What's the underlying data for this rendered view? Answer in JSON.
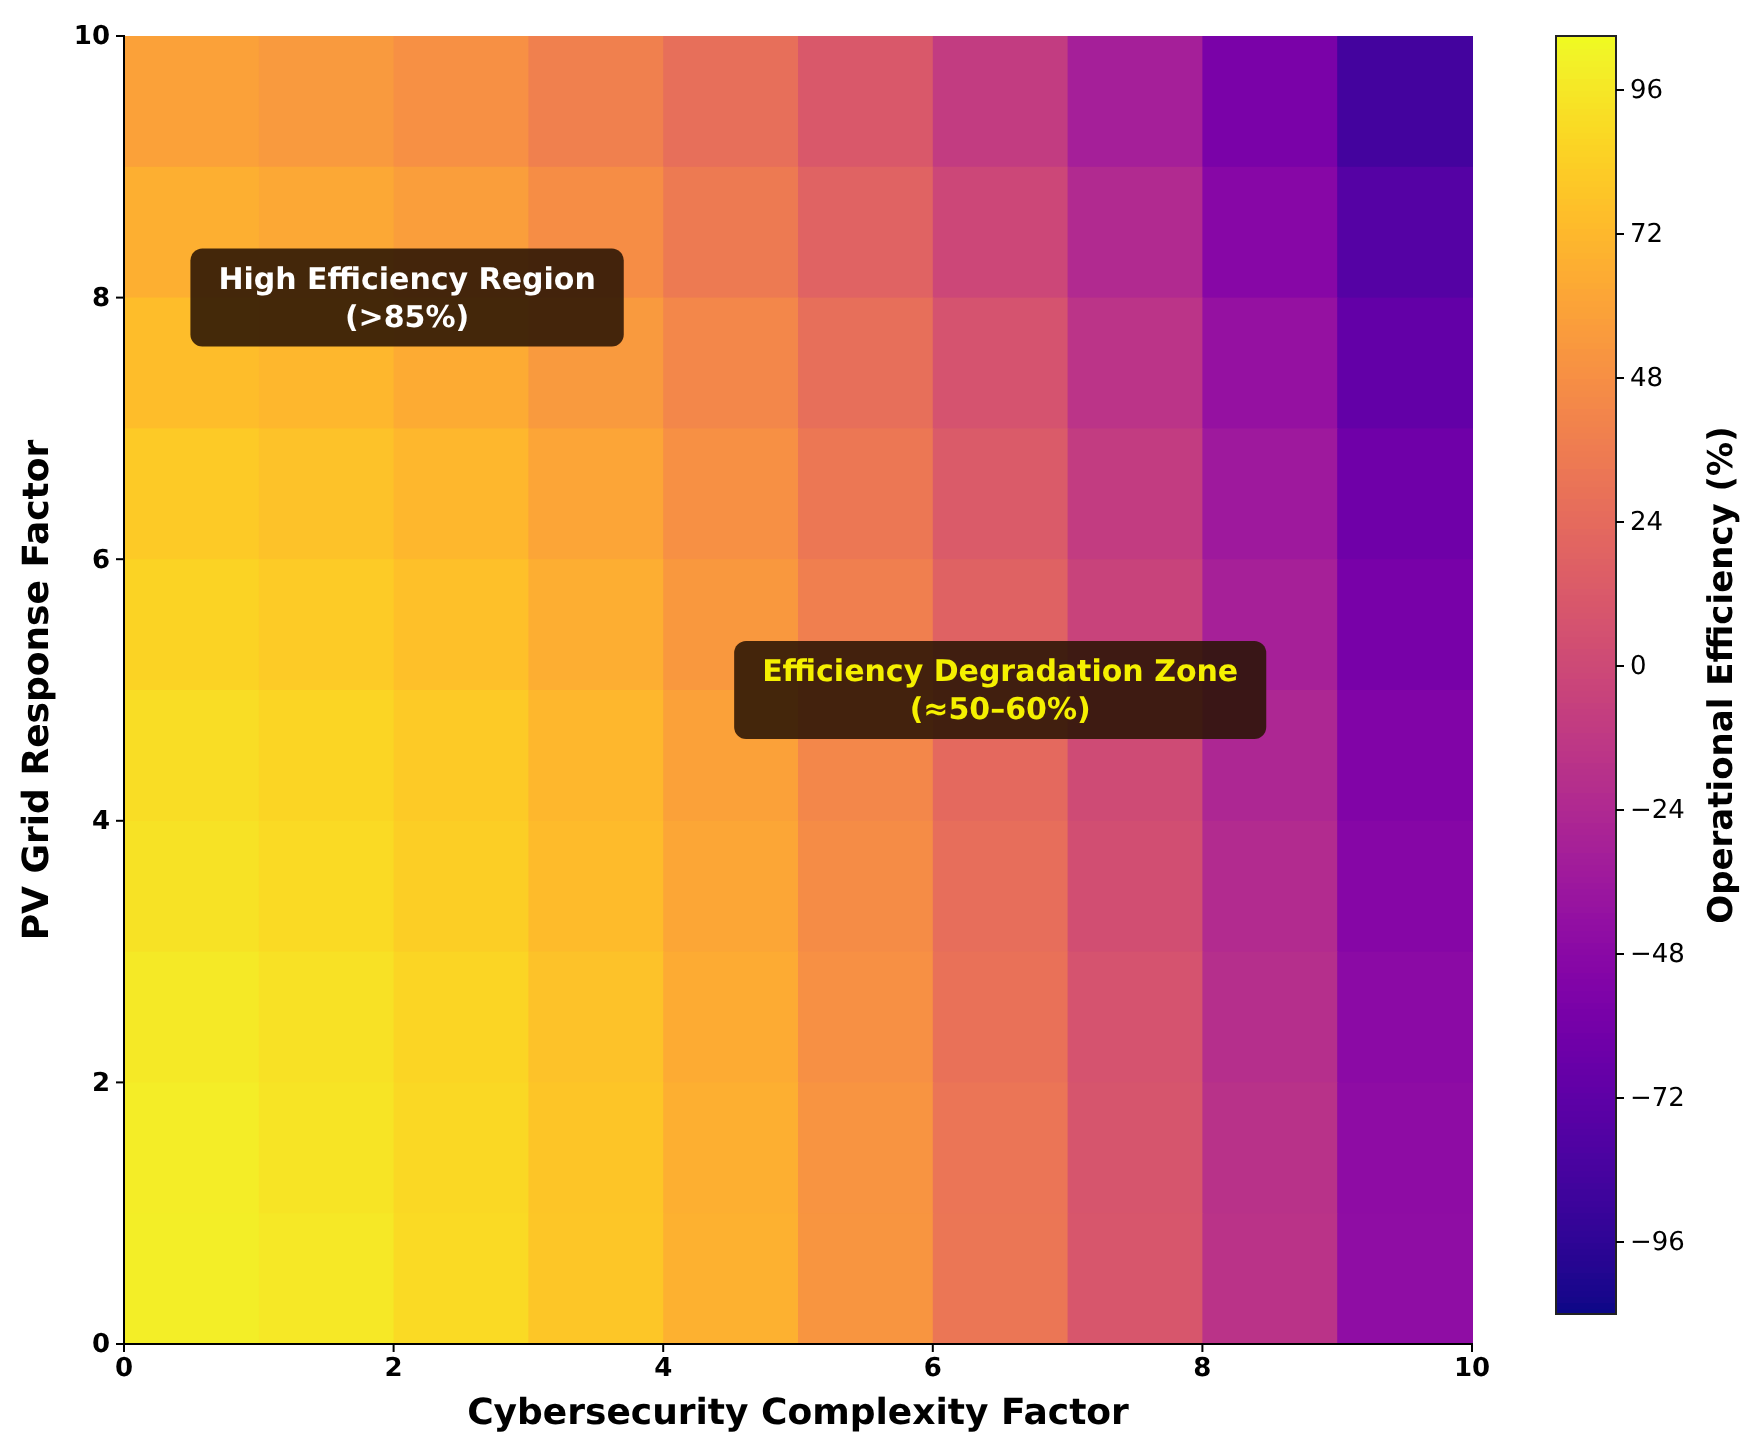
{
  "chart_data": {
    "type": "heatmap",
    "xlabel": "Cybersecurity Complexity Factor",
    "ylabel": "PV Grid Response Factor",
    "clabel": "Operational Efficiency (%)",
    "x": [
      0.5,
      1.5,
      2.5,
      3.5,
      4.5,
      5.5,
      6.5,
      7.5,
      8.5,
      9.5
    ],
    "y": [
      9.5,
      8.5,
      7.5,
      6.5,
      5.5,
      4.5,
      3.5,
      2.5,
      1.5,
      0.5
    ],
    "xlim": [
      0,
      10
    ],
    "ylim": [
      0,
      10
    ],
    "xticks": [
      0,
      2,
      4,
      6,
      8,
      10
    ],
    "yticks": [
      0,
      2,
      4,
      6,
      8,
      10
    ],
    "cells": [
      [
        59,
        55,
        49,
        39,
        27,
        11,
        -9,
        -31,
        -57,
        -85
      ],
      [
        67,
        63,
        57,
        47,
        35,
        19,
        -1,
        -23,
        -49,
        -77
      ],
      [
        75,
        71,
        65,
        55,
        43,
        27,
        7,
        -15,
        -41,
        -69
      ],
      [
        81,
        77,
        71,
        61,
        49,
        33,
        13,
        -9,
        -35,
        -63
      ],
      [
        86,
        82,
        76,
        66,
        54,
        38,
        18,
        -4,
        -30,
        -58
      ],
      [
        91,
        87,
        81,
        71,
        59,
        43,
        23,
        1,
        -25,
        -53
      ],
      [
        94,
        90,
        84,
        74,
        62,
        46,
        26,
        4,
        -22,
        -50
      ],
      [
        97,
        93,
        87,
        77,
        65,
        49,
        29,
        7,
        -19,
        -47
      ],
      [
        99,
        95,
        89,
        79,
        67,
        51,
        31,
        9,
        -17,
        -45
      ],
      [
        100,
        96,
        90,
        80,
        68,
        52,
        32,
        10,
        -16,
        -44
      ]
    ],
    "clim": [
      -108,
      105
    ],
    "cticks": [
      -96,
      -72,
      -48,
      -24,
      0,
      24,
      48,
      72,
      96
    ],
    "annotations": [
      "High Efficiency Region\n(>85%)",
      "Efficiency Degradation Zone\n(≈50–60%)"
    ]
  }
}
